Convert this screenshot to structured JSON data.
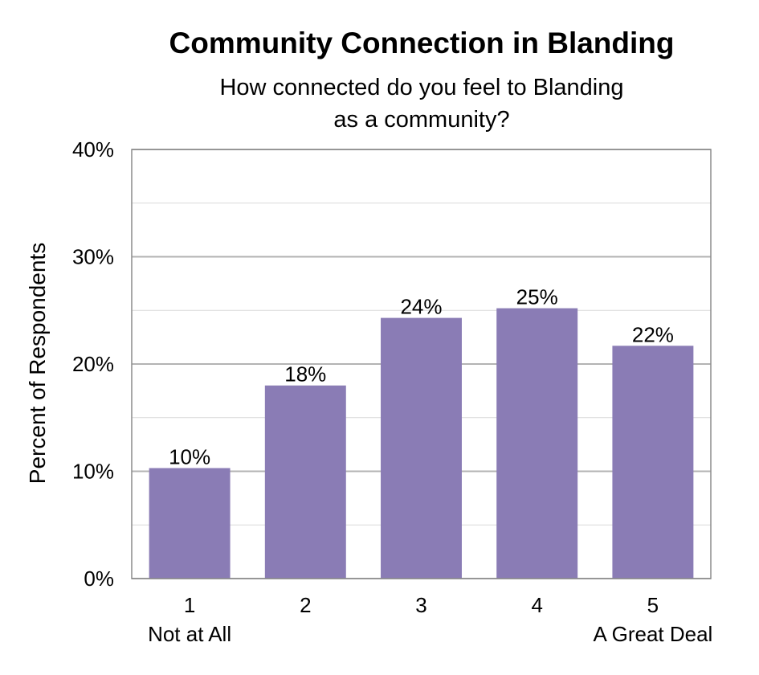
{
  "chart_data": {
    "type": "bar",
    "title": "Community Connection in Blanding",
    "subtitle_lines": [
      "How connected do you feel to Blanding",
      "as a community?"
    ],
    "ylabel": "Percent of Respondents",
    "xlabel": "",
    "categories": [
      "1",
      "2",
      "3",
      "4",
      "5"
    ],
    "category_sublabels": [
      "Not at All",
      "",
      "",
      "",
      "A Great Deal"
    ],
    "values": [
      10.3,
      18.0,
      24.3,
      25.2,
      21.7
    ],
    "data_labels": [
      "10%",
      "18%",
      "24%",
      "25%",
      "22%"
    ],
    "ylim": [
      0,
      40
    ],
    "yticks": [
      0,
      10,
      20,
      30,
      40
    ],
    "ytick_labels": [
      "0%",
      "10%",
      "20%",
      "30%",
      "40%"
    ],
    "grid": true,
    "minor_grid": true,
    "bar_color": "#8a7cb5",
    "gridline_color": "#b3b3b3"
  }
}
